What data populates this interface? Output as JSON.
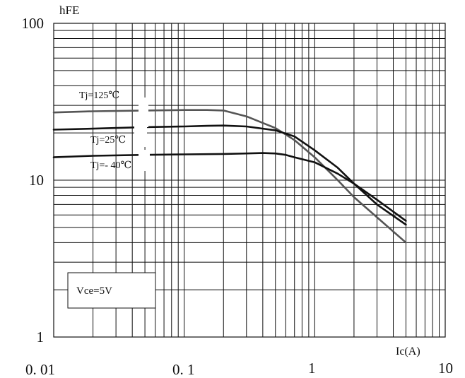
{
  "chart_data": {
    "type": "line",
    "title": "",
    "xlabel": "Ic(A)",
    "ylabel": "hFE",
    "x_scale": "log",
    "y_scale": "log",
    "xlim": [
      0.01,
      10
    ],
    "ylim": [
      1,
      100
    ],
    "grid": true,
    "x_ticks": [
      {
        "value": 0.01,
        "label": "0. 01"
      },
      {
        "value": 0.1,
        "label": "0. 1"
      },
      {
        "value": 1,
        "label": "1"
      },
      {
        "value": 10,
        "label": "10"
      }
    ],
    "y_ticks": [
      {
        "value": 1,
        "label": "1"
      },
      {
        "value": 10,
        "label": "10"
      },
      {
        "value": 100,
        "label": "100"
      }
    ],
    "series": [
      {
        "name": "Tj=125℃",
        "color": "#555555",
        "x": [
          0.01,
          0.02,
          0.05,
          0.1,
          0.15,
          0.2,
          0.3,
          0.5,
          0.7,
          1.0,
          1.5,
          2.0,
          3.0,
          5.0
        ],
        "y": [
          27,
          27.5,
          27.8,
          28,
          28,
          27.8,
          25.5,
          21.5,
          18,
          14,
          10,
          7.8,
          5.8,
          4.0
        ]
      },
      {
        "name": "Tj=25℃",
        "color": "#111111",
        "x": [
          0.01,
          0.02,
          0.05,
          0.1,
          0.15,
          0.2,
          0.3,
          0.5,
          0.7,
          1.0,
          1.5,
          2.0,
          3.0,
          5.0
        ],
        "y": [
          21,
          21.3,
          21.8,
          22,
          22.2,
          22.3,
          22,
          20.8,
          19,
          15.5,
          12,
          9.5,
          7,
          5.2
        ]
      },
      {
        "name": "Tj=- 40℃",
        "color": "#111111",
        "x": [
          0.01,
          0.02,
          0.05,
          0.1,
          0.2,
          0.3,
          0.4,
          0.5,
          0.6,
          0.7,
          1.0,
          1.5,
          2.0,
          3.0,
          5.0
        ],
        "y": [
          14,
          14.3,
          14.5,
          14.6,
          14.7,
          14.8,
          14.9,
          14.8,
          14.5,
          14,
          13,
          11,
          9.5,
          7.5,
          5.5
        ]
      }
    ],
    "annotations": [
      {
        "text": "Vce=5V"
      }
    ]
  }
}
